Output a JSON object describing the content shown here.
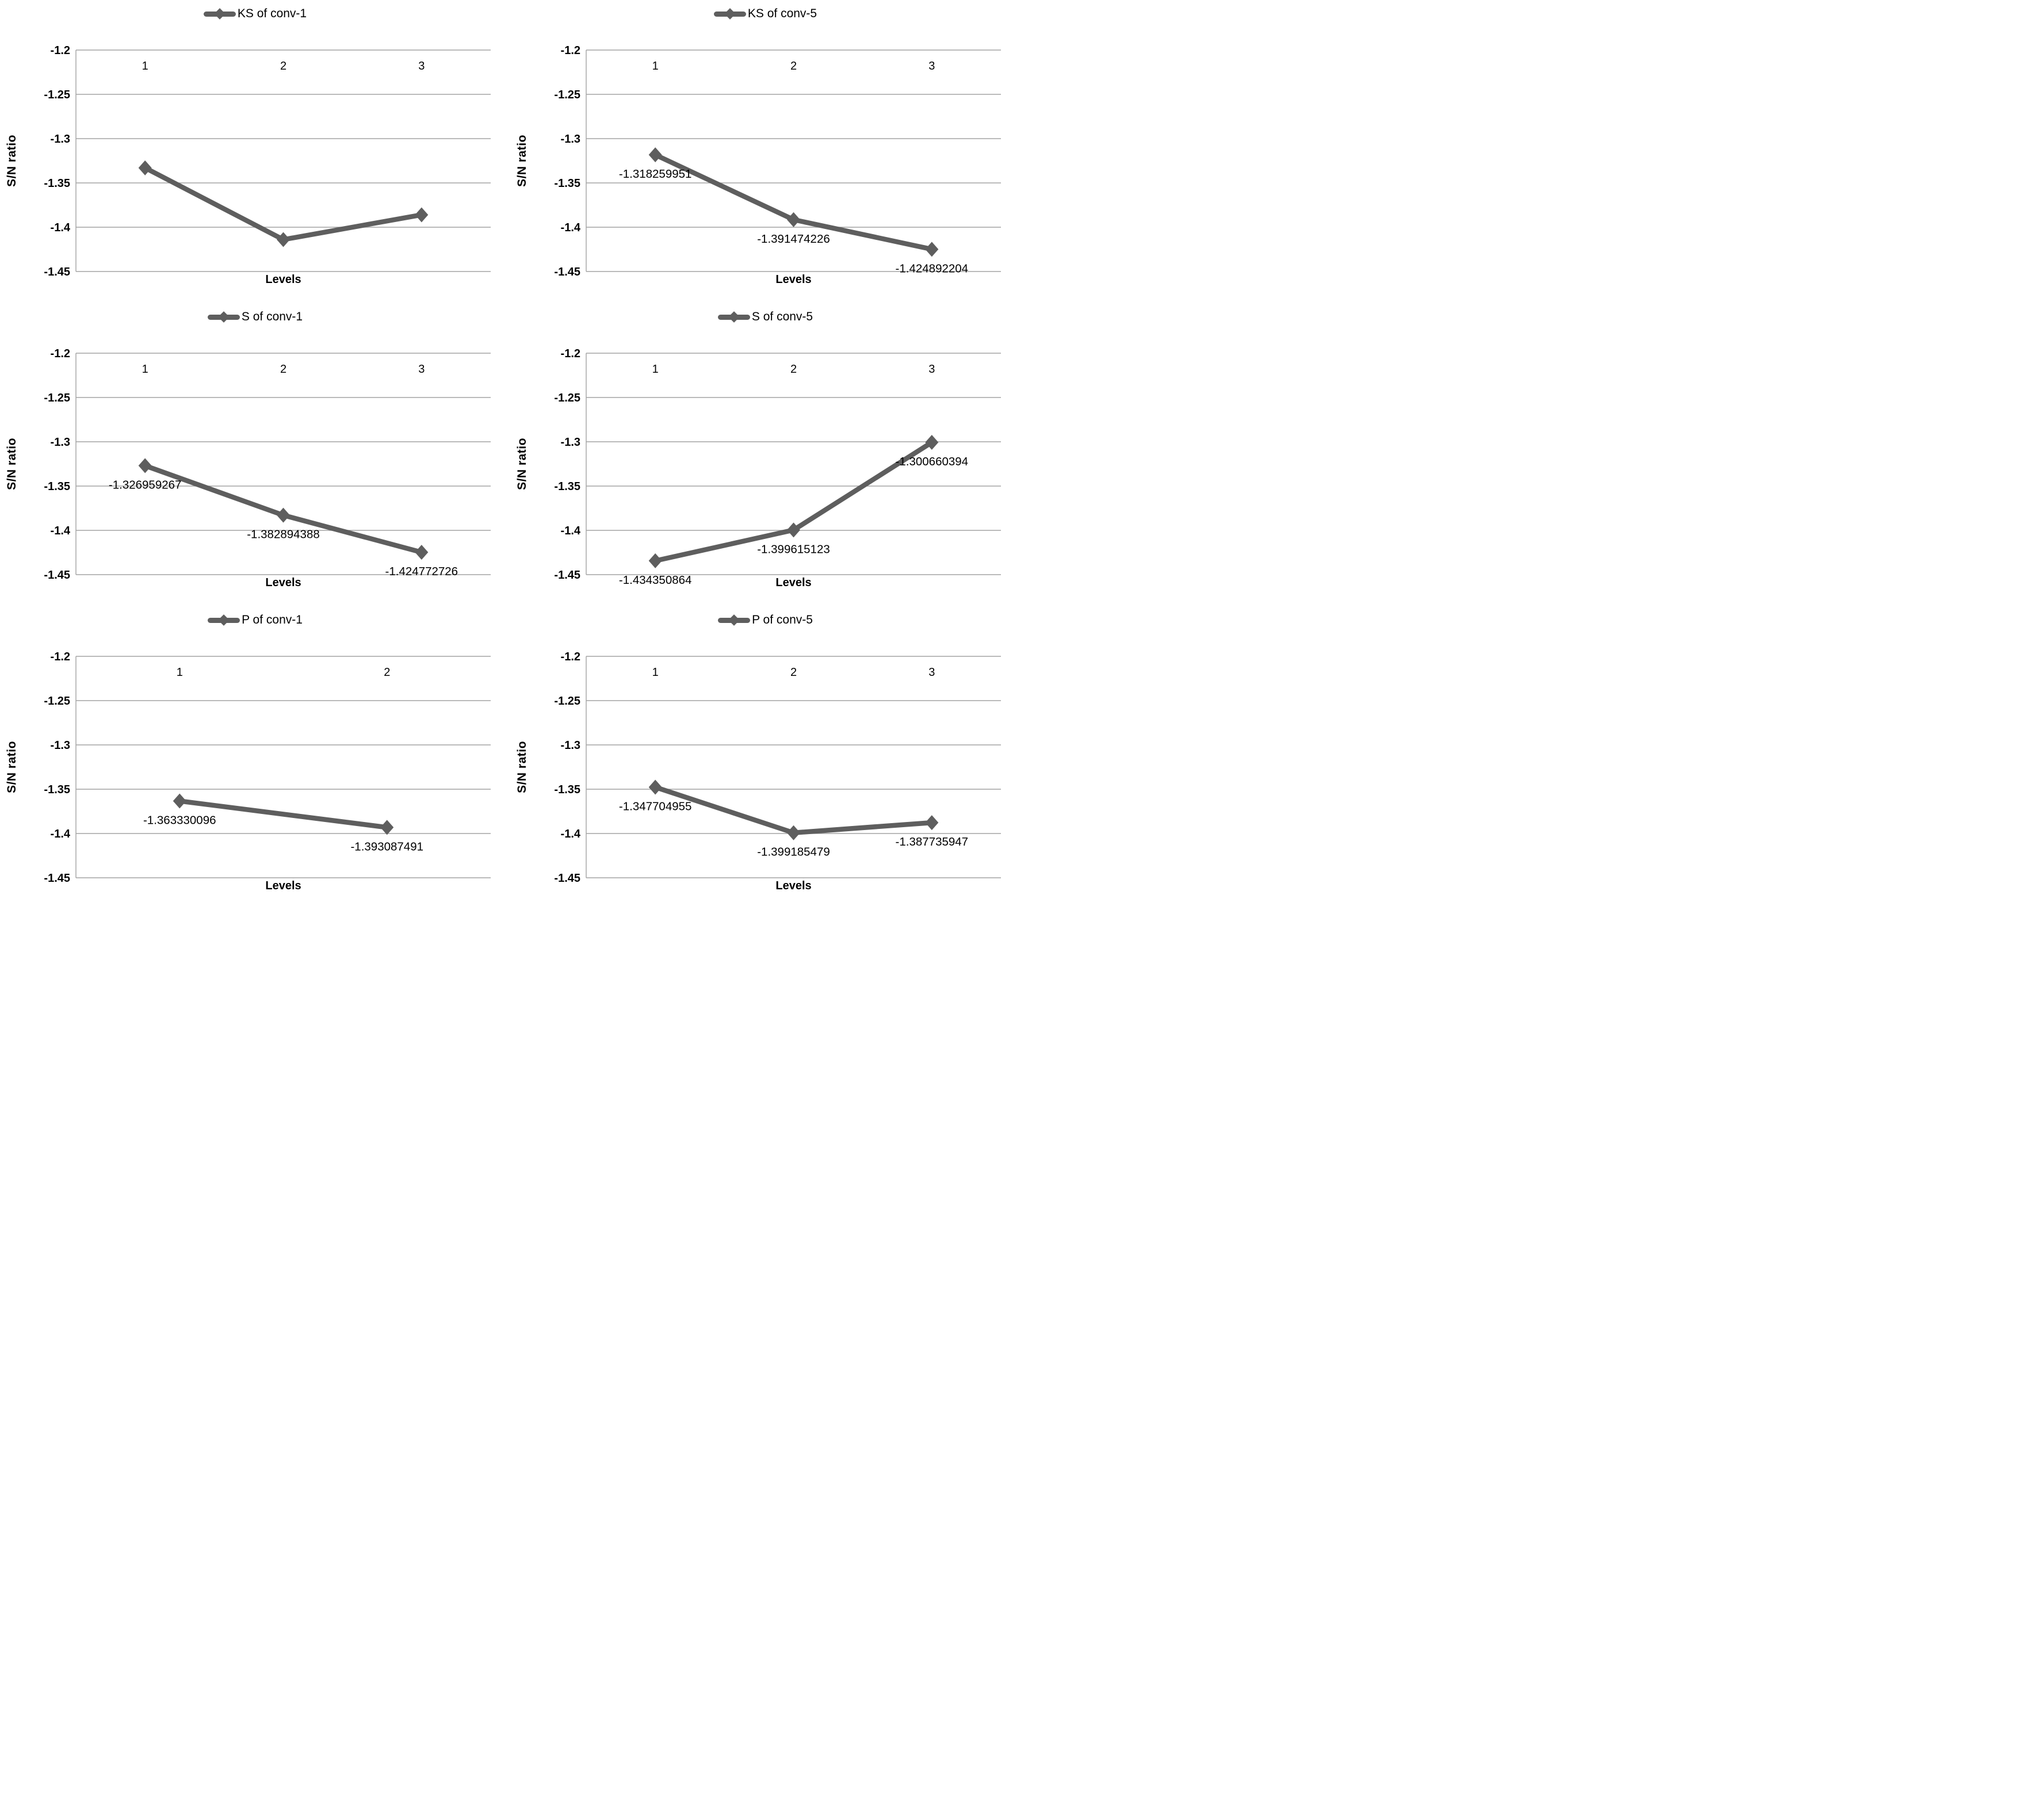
{
  "colors": {
    "background": "#ffffff",
    "series_line": "#5e5e5e",
    "marker": "#5e5e5e",
    "gridline": "#a3a3a3",
    "axis_line": "#a3a3a3",
    "text": "#000000"
  },
  "axis": {
    "ylabel": "S/N ratio",
    "xlabel": "Levels",
    "ymax": -1.2,
    "ymin": -1.45,
    "ytick_labels": [
      "-1.2",
      "-1.25",
      "-1.3",
      "-1.35",
      "-1.4",
      "-1.45"
    ],
    "grid": true,
    "legend_position": "top-center",
    "marker_style": "diamond"
  },
  "chart_data": [
    {
      "type": "line",
      "title": "KS of conv-1",
      "categories": [
        "1",
        "2",
        "3"
      ],
      "values": [
        -1.333,
        -1.414,
        -1.386
      ],
      "values_estimated": true,
      "data_labels": [],
      "xlabel": "Levels",
      "ylabel": "S/N ratio",
      "ylim": [
        -1.45,
        -1.2
      ]
    },
    {
      "type": "line",
      "title": "KS of conv-5",
      "categories": [
        "1",
        "2",
        "3"
      ],
      "values": [
        -1.318259951,
        -1.391474226,
        -1.424892204
      ],
      "data_labels": [
        "-1.318259951",
        "-1.391474226",
        "-1.424892204"
      ],
      "xlabel": "Levels",
      "ylabel": "S/N ratio",
      "ylim": [
        -1.45,
        -1.2
      ]
    },
    {
      "type": "line",
      "title": "S of conv-1",
      "categories": [
        "1",
        "2",
        "3"
      ],
      "values": [
        -1.326959267,
        -1.382894388,
        -1.424772726
      ],
      "data_labels": [
        "-1.326959267",
        "-1.382894388",
        "-1.424772726"
      ],
      "xlabel": "Levels",
      "ylabel": "S/N ratio",
      "ylim": [
        -1.45,
        -1.2
      ]
    },
    {
      "type": "line",
      "title": "S of conv-5",
      "categories": [
        "1",
        "2",
        "3"
      ],
      "values": [
        -1.434350864,
        -1.399615123,
        -1.300660394
      ],
      "data_labels": [
        "-1.434350864",
        "-1.399615123",
        "-1.300660394"
      ],
      "xlabel": "Levels",
      "ylabel": "S/N ratio",
      "ylim": [
        -1.45,
        -1.2
      ]
    },
    {
      "type": "line",
      "title": "P of conv-1",
      "categories": [
        "1",
        "2"
      ],
      "values": [
        -1.363330096,
        -1.393087491
      ],
      "data_labels": [
        "-1.363330096",
        "-1.393087491"
      ],
      "xlabel": "Levels",
      "ylabel": "S/N ratio",
      "ylim": [
        -1.45,
        -1.2
      ]
    },
    {
      "type": "line",
      "title": "P of conv-5",
      "categories": [
        "1",
        "2",
        "3"
      ],
      "values": [
        -1.347704955,
        -1.399185479,
        -1.387735947
      ],
      "data_labels": [
        "-1.347704955",
        "-1.399185479",
        "-1.387735947"
      ],
      "xlabel": "Levels",
      "ylabel": "S/N ratio",
      "ylim": [
        -1.45,
        -1.2
      ]
    }
  ]
}
